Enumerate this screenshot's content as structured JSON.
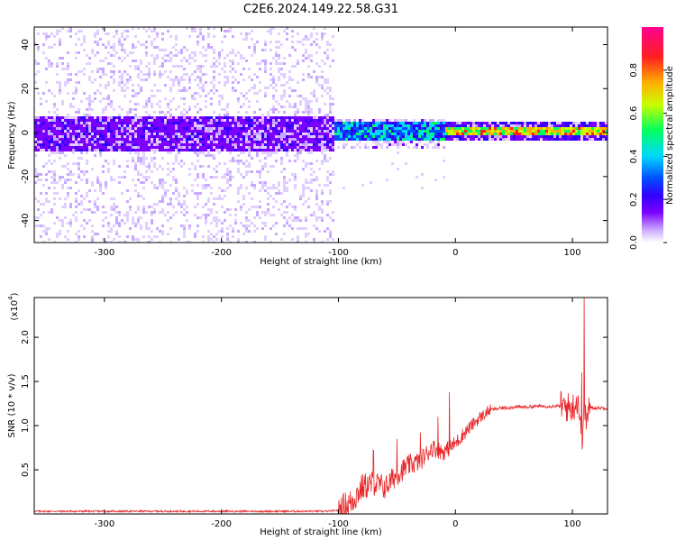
{
  "title": "C2E6.2024.149.22.58.G31",
  "colors": {
    "snr_line": "#e8282a",
    "frame": "#000000",
    "colorbar_stops": [
      "#ffffff",
      "#c9a8ff",
      "#7b00ff",
      "#3200ff",
      "#0050ff",
      "#00d8ff",
      "#00ff60",
      "#c8ff00",
      "#ffb000",
      "#ff2020",
      "#ff0090"
    ]
  },
  "chart_data": [
    {
      "type": "heatmap",
      "title": "C2E6.2024.149.22.58.G31",
      "xlabel": "Height of straight line (km)",
      "ylabel": "Frequency (Hz)",
      "xlim": [
        -360,
        130
      ],
      "ylim": [
        -50,
        48
      ],
      "x_ticks": [
        -300,
        -200,
        -100,
        0,
        100
      ],
      "y_ticks": [
        -40,
        -20,
        0,
        20,
        40
      ],
      "colorbar": {
        "label": "Normalized spectral amplitude",
        "range": [
          0,
          1
        ],
        "ticks": [
          "0.0",
          "0.2",
          "0.4",
          "0.6",
          "0.8"
        ]
      },
      "regions": [
        {
          "x_range": [
            -360,
            -105
          ],
          "description_values": {
            "band_halfwidth_hz": 8,
            "scatter_halfwidth_hz": 48,
            "max_amplitude": 0.25
          }
        },
        {
          "x_range": [
            -105,
            -10
          ],
          "description_values": {
            "band_halfwidth_hz": 5,
            "max_amplitude": 0.55
          }
        },
        {
          "x_range": [
            -10,
            130
          ],
          "description_values": {
            "band_halfwidth_hz": 3,
            "max_amplitude": 0.9
          }
        }
      ]
    },
    {
      "type": "line",
      "xlabel": "Height of straight line (km)",
      "ylabel": "SNR (10 * v/v)",
      "y_multiplier": "(x10",
      "y_multiplier_exp": "4",
      "y_multiplier_close": ")",
      "xlim": [
        -360,
        130
      ],
      "ylim": [
        0,
        2.45
      ],
      "x_ticks": [
        -300,
        -200,
        -100,
        0,
        100
      ],
      "y_ticks": [
        "0.5",
        "1.0",
        "1.5",
        "2.0"
      ],
      "series": [
        {
          "x": [
            -360,
            -110,
            -100,
            -90,
            -80,
            -70,
            -60,
            -50,
            -40,
            -30,
            -20,
            -10,
            0,
            10,
            20,
            30,
            40,
            50,
            60,
            70,
            80,
            90,
            100,
            105,
            108,
            110,
            112,
            115,
            120,
            130
          ],
          "y": [
            0.03,
            0.03,
            0.04,
            0.12,
            0.3,
            0.35,
            0.3,
            0.45,
            0.55,
            0.6,
            0.75,
            0.7,
            0.8,
            0.95,
            1.08,
            1.18,
            1.2,
            1.21,
            1.21,
            1.22,
            1.22,
            1.22,
            1.2,
            1.3,
            0.8,
            1.25,
            1.05,
            1.21,
            1.2,
            1.2
          ],
          "peaks": [
            [
              -70,
              0.72
            ],
            [
              -50,
              0.85
            ],
            [
              -30,
              0.92
            ],
            [
              -15,
              1.1
            ],
            [
              -5,
              1.38
            ],
            [
              110,
              2.45
            ],
            [
              108,
              1.6
            ]
          ]
        }
      ]
    }
  ]
}
